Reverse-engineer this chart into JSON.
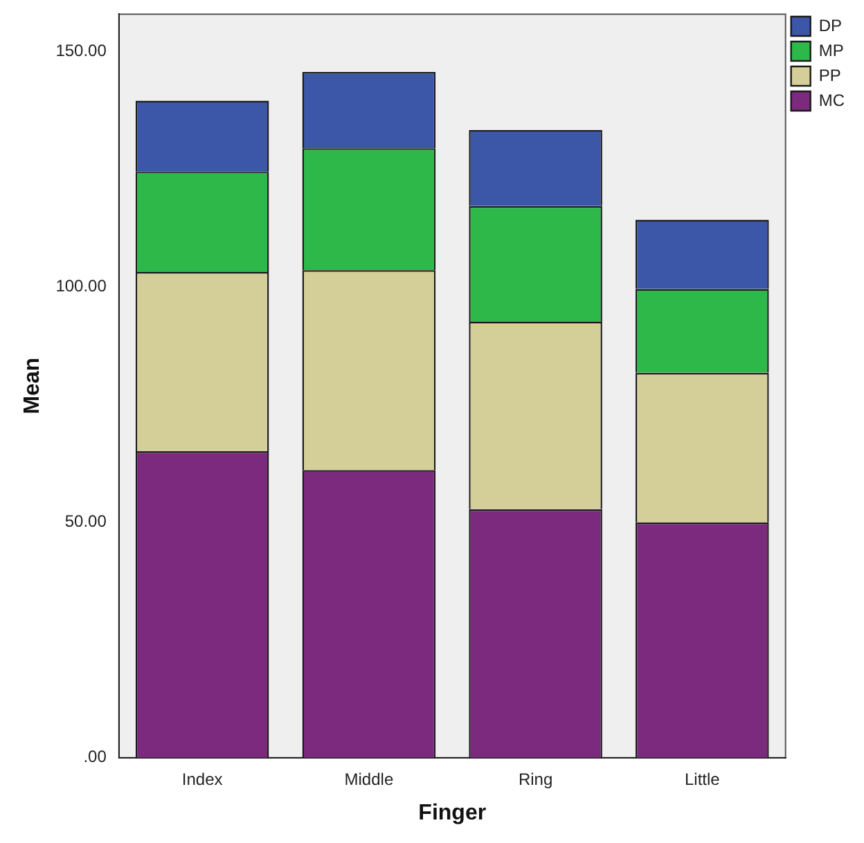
{
  "chart_data": {
    "type": "bar",
    "stacked": true,
    "xlabel": "Finger",
    "ylabel": "Mean",
    "categories": [
      "Index",
      "Middle",
      "Ring",
      "Little"
    ],
    "series": [
      {
        "name": "MC",
        "color": "#7b2a7d",
        "values": [
          65.1,
          61.1,
          52.8,
          50.0
        ]
      },
      {
        "name": "PP",
        "color": "#d4cf99",
        "values": [
          38.1,
          42.5,
          39.8,
          31.8
        ]
      },
      {
        "name": "MP",
        "color": "#2fb84a",
        "values": [
          21.3,
          25.9,
          24.6,
          17.8
        ]
      },
      {
        "name": "DP",
        "color": "#3c57a8",
        "values": [
          15.1,
          16.2,
          16.2,
          14.7
        ]
      }
    ],
    "ylim": [
      0,
      158
    ],
    "yticks": [
      {
        "value": 0,
        "label": ".00"
      },
      {
        "value": 50,
        "label": "50.00"
      },
      {
        "value": 100,
        "label": "100.00"
      },
      {
        "value": 150,
        "label": "150.00"
      }
    ],
    "grid": false,
    "legend": "top right"
  }
}
